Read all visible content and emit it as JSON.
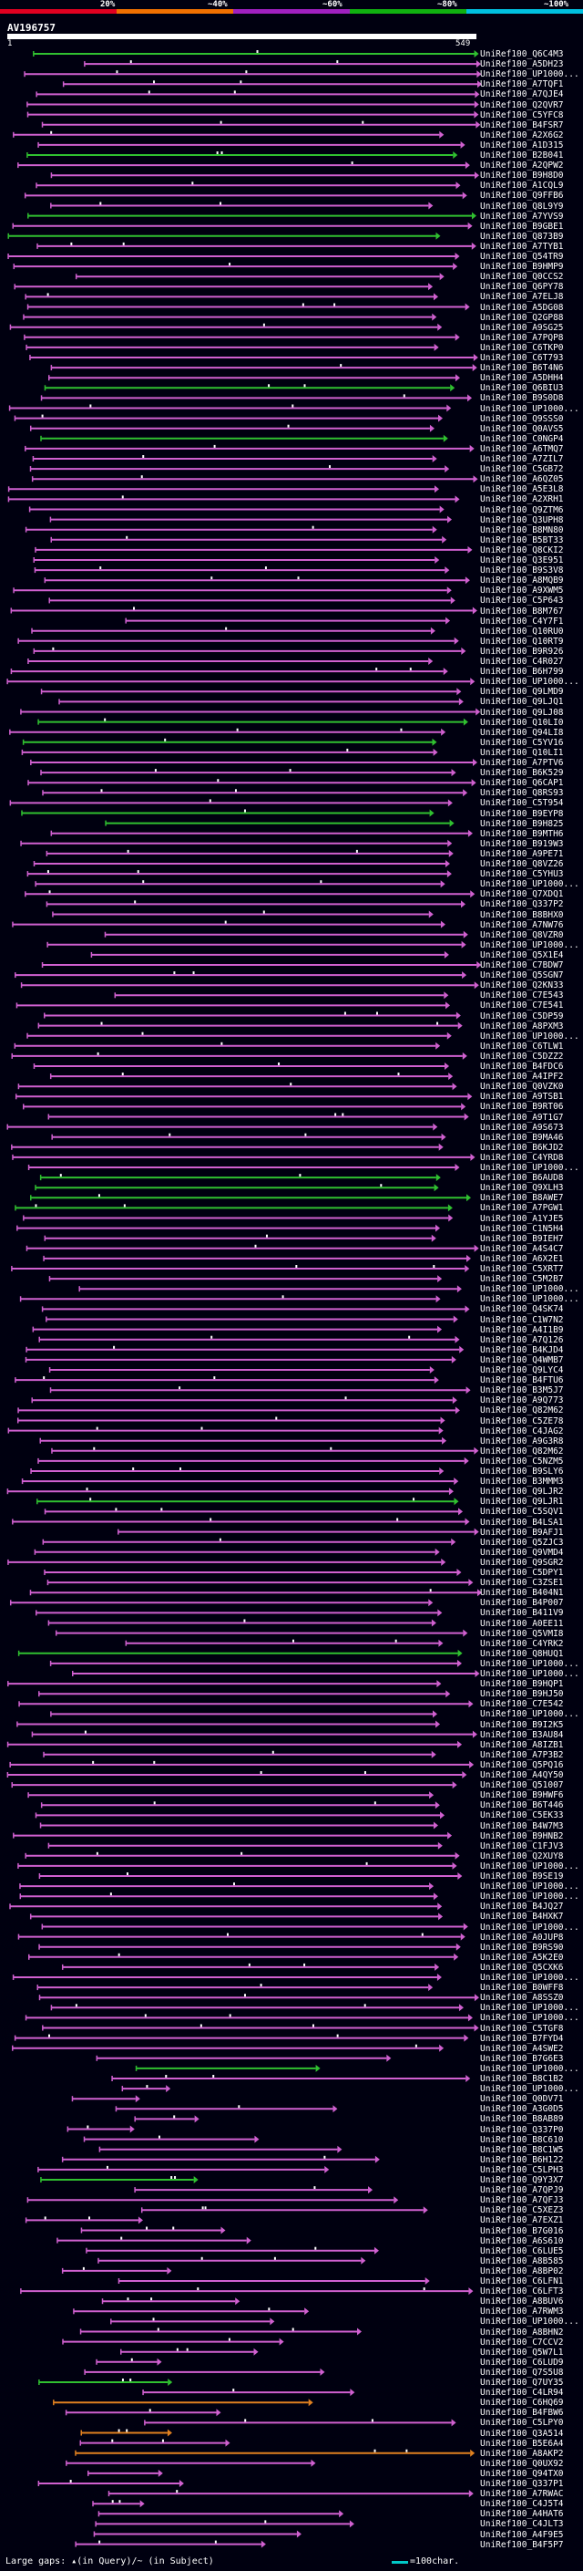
{
  "colors": {
    "background": "#000010",
    "pct20": "#e00020",
    "pct40": "#f07000",
    "pct60": "#a020c0",
    "pct80": "#10b010",
    "pct100": "#00c0e0",
    "query": "#ffffff",
    "gap_marker": "#ffffff"
  },
  "legend": {
    "labels": [
      "20%",
      "~40%",
      "~60%",
      "~80%",
      "~100%"
    ]
  },
  "query": {
    "name": "AV196757",
    "start": "1",
    "end": "549"
  },
  "hits": [
    {
      "label": "UniRef100_Q6C4M3",
      "color": "green"
    },
    {
      "label": "UniRef100_A5DH23",
      "color": "pink"
    },
    {
      "label": "UniRef100_UP1000...",
      "color": "pink"
    },
    {
      "label": "UniRef100_A7TQF1",
      "color": "pink"
    },
    {
      "label": "UniRef100_A7QJE4",
      "color": "pink"
    },
    {
      "label": "UniRef100_Q2QVR7",
      "color": "pink"
    },
    {
      "label": "UniRef100_C5YFC8",
      "color": "pink"
    },
    {
      "label": "UniRef100_B4FSR7",
      "color": "pink"
    },
    {
      "label": "UniRef100_A2X6G2",
      "color": "pink"
    },
    {
      "label": "UniRef100_A1D315",
      "color": "pink"
    },
    {
      "label": "UniRef100_B2B041",
      "color": "green"
    },
    {
      "label": "UniRef100_A2QPW2",
      "color": "pink"
    },
    {
      "label": "UniRef100_B9H8D0",
      "color": "pink"
    },
    {
      "label": "UniRef100_A1CQL9",
      "color": "pink"
    },
    {
      "label": "UniRef100_Q9FFB6",
      "color": "pink"
    },
    {
      "label": "UniRef100_Q8L9Y9",
      "color": "pink"
    },
    {
      "label": "UniRef100_A7YVS9",
      "color": "green"
    },
    {
      "label": "UniRef100_B9GBE1",
      "color": "pink"
    },
    {
      "label": "UniRef100_Q873B9",
      "color": "green"
    },
    {
      "label": "UniRef100_A7TYB1",
      "color": "pink"
    },
    {
      "label": "UniRef100_Q54TR9",
      "color": "pink"
    },
    {
      "label": "UniRef100_B9HMP9",
      "color": "pink"
    },
    {
      "label": "UniRef100_Q0CCS2",
      "color": "pink"
    },
    {
      "label": "UniRef100_Q6PY78",
      "color": "pink"
    },
    {
      "label": "UniRef100_A7ELJ8",
      "color": "pink"
    },
    {
      "label": "UniRef100_A5DG08",
      "color": "pink"
    },
    {
      "label": "UniRef100_Q2GP88",
      "color": "pink"
    },
    {
      "label": "UniRef100_A9SG25",
      "color": "pink"
    },
    {
      "label": "UniRef100_A7PQP8",
      "color": "pink"
    },
    {
      "label": "UniRef100_C6TKP0",
      "color": "pink"
    },
    {
      "label": "UniRef100_C6T793",
      "color": "pink"
    },
    {
      "label": "UniRef100_B6T4N6",
      "color": "pink"
    },
    {
      "label": "UniRef100_A5DHH4",
      "color": "pink"
    },
    {
      "label": "UniRef100_Q6BIU3",
      "color": "green"
    },
    {
      "label": "UniRef100_B9S0D8",
      "color": "pink"
    },
    {
      "label": "UniRef100_UP1000...",
      "color": "pink"
    },
    {
      "label": "UniRef100_Q9SSS0",
      "color": "pink"
    },
    {
      "label": "UniRef100_Q0AVS5",
      "color": "pink"
    },
    {
      "label": "UniRef100_C0NGP4",
      "color": "green"
    },
    {
      "label": "UniRef100_A6TMQ7",
      "color": "pink"
    },
    {
      "label": "UniRef100_A7ZIL7",
      "color": "pink"
    },
    {
      "label": "UniRef100_C5GB72",
      "color": "pink"
    },
    {
      "label": "UniRef100_A6QZ05",
      "color": "pink"
    },
    {
      "label": "UniRef100_A5E3L8",
      "color": "pink"
    },
    {
      "label": "UniRef100_A2XRH1",
      "color": "pink"
    },
    {
      "label": "UniRef100_Q9ZTM6",
      "color": "pink"
    },
    {
      "label": "UniRef100_Q3UPH8",
      "color": "pink"
    },
    {
      "label": "UniRef100_B8MN80",
      "color": "pink"
    },
    {
      "label": "UniRef100_B5BT33",
      "color": "pink"
    },
    {
      "label": "UniRef100_Q8CKI2",
      "color": "pink"
    },
    {
      "label": "UniRef100_Q3E951",
      "color": "pink"
    },
    {
      "label": "UniRef100_B9S3V8",
      "color": "pink"
    },
    {
      "label": "UniRef100_A8MQB9",
      "color": "pink"
    },
    {
      "label": "UniRef100_A9XWM5",
      "color": "pink"
    },
    {
      "label": "UniRef100_C5P643",
      "color": "pink"
    },
    {
      "label": "UniRef100_B8M767",
      "color": "pink"
    },
    {
      "label": "UniRef100_C4Y7F1",
      "color": "pink"
    },
    {
      "label": "UniRef100_Q10RU0",
      "color": "pink"
    },
    {
      "label": "UniRef100_Q10RT9",
      "color": "pink"
    },
    {
      "label": "UniRef100_B9R926",
      "color": "pink"
    },
    {
      "label": "UniRef100_C4R027",
      "color": "pink"
    },
    {
      "label": "UniRef100_B6H799",
      "color": "pink"
    },
    {
      "label": "UniRef100_UP1000...",
      "color": "pink"
    },
    {
      "label": "UniRef100_Q9LMD9",
      "color": "pink"
    },
    {
      "label": "UniRef100_Q9LJQ1",
      "color": "pink"
    },
    {
      "label": "UniRef100_Q9LJ08",
      "color": "pink"
    },
    {
      "label": "UniRef100_Q10LI0",
      "color": "green"
    },
    {
      "label": "UniRef100_Q94LI8",
      "color": "pink"
    },
    {
      "label": "UniRef100_C5YV16",
      "color": "green"
    },
    {
      "label": "UniRef100_Q10LI1",
      "color": "pink"
    },
    {
      "label": "UniRef100_A7PTV6",
      "color": "pink"
    },
    {
      "label": "UniRef100_B6K529",
      "color": "pink"
    },
    {
      "label": "UniRef100_Q6CAP1",
      "color": "pink"
    },
    {
      "label": "UniRef100_Q8RS93",
      "color": "pink"
    },
    {
      "label": "UniRef100_C5T954",
      "color": "pink"
    },
    {
      "label": "UniRef100_B9EYP8",
      "color": "green"
    },
    {
      "label": "UniRef100_B9H825",
      "color": "green"
    },
    {
      "label": "UniRef100_B9MTH6",
      "color": "pink"
    },
    {
      "label": "UniRef100_B919W3",
      "color": "pink"
    },
    {
      "label": "UniRef100_A9PE71",
      "color": "pink"
    },
    {
      "label": "UniRef100_Q8VZ26",
      "color": "pink"
    },
    {
      "label": "UniRef100_C5YHU3",
      "color": "pink"
    },
    {
      "label": "UniRef100_UP1000...",
      "color": "pink"
    },
    {
      "label": "UniRef100_Q7XDQ1",
      "color": "pink"
    },
    {
      "label": "UniRef100_Q337P2",
      "color": "pink"
    },
    {
      "label": "UniRef100_B8BHX0",
      "color": "pink"
    },
    {
      "label": "UniRef100_A7NW76",
      "color": "pink"
    },
    {
      "label": "UniRef100_Q8VZR0",
      "color": "pink"
    },
    {
      "label": "UniRef100_UP1000...",
      "color": "pink"
    },
    {
      "label": "UniRef100_Q5X1E4",
      "color": "pink"
    },
    {
      "label": "UniRef100_C7BDW7",
      "color": "pink"
    },
    {
      "label": "UniRef100_Q5SGN7",
      "color": "pink"
    },
    {
      "label": "UniRef100_Q2KN33",
      "color": "pink"
    },
    {
      "label": "UniRef100_C7E543",
      "color": "pink"
    },
    {
      "label": "UniRef100_C7E541",
      "color": "pink"
    },
    {
      "label": "UniRef100_C5DP59",
      "color": "pink"
    },
    {
      "label": "UniRef100_A8PXM3",
      "color": "pink"
    },
    {
      "label": "UniRef100_UP1000...",
      "color": "pink"
    },
    {
      "label": "UniRef100_C6TLW1",
      "color": "pink"
    },
    {
      "label": "UniRef100_C5DZZ2",
      "color": "pink"
    },
    {
      "label": "UniRef100_B4FDC6",
      "color": "pink"
    },
    {
      "label": "UniRef100_A4IPF2",
      "color": "pink"
    },
    {
      "label": "UniRef100_Q0VZK0",
      "color": "pink"
    },
    {
      "label": "UniRef100_A9TSB1",
      "color": "pink"
    },
    {
      "label": "UniRef100_B9RT06",
      "color": "pink"
    },
    {
      "label": "UniRef100_A9T1G7",
      "color": "pink"
    },
    {
      "label": "UniRef100_A9S673",
      "color": "pink"
    },
    {
      "label": "UniRef100_B9MA46",
      "color": "pink"
    },
    {
      "label": "UniRef100_B6KJD2",
      "color": "pink"
    },
    {
      "label": "UniRef100_C4YRD8",
      "color": "pink"
    },
    {
      "label": "UniRef100_UP1000...",
      "color": "pink"
    },
    {
      "label": "UniRef100_B6AUD8",
      "color": "green"
    },
    {
      "label": "UniRef100_Q9XLH3",
      "color": "green"
    },
    {
      "label": "UniRef100_B8AWE7",
      "color": "green"
    },
    {
      "label": "UniRef100_A7PGW1",
      "color": "green"
    },
    {
      "label": "UniRef100_A1YJE5",
      "color": "pink"
    },
    {
      "label": "UniRef100_C1N5H4",
      "color": "pink"
    },
    {
      "label": "UniRef100_B9IEH7",
      "color": "pink"
    },
    {
      "label": "UniRef100_A4S4C7",
      "color": "pink"
    },
    {
      "label": "UniRef100_A6X2E1",
      "color": "pink"
    },
    {
      "label": "UniRef100_C5XRT7",
      "color": "pink"
    },
    {
      "label": "UniRef100_C5M2B7",
      "color": "pink"
    },
    {
      "label": "UniRef100_UP1000...",
      "color": "pink"
    },
    {
      "label": "UniRef100_UP1000...",
      "color": "pink"
    },
    {
      "label": "UniRef100_Q4SK74",
      "color": "pink"
    },
    {
      "label": "UniRef100_C1W7N2",
      "color": "pink"
    },
    {
      "label": "UniRef100_A4I1B9",
      "color": "pink"
    },
    {
      "label": "UniRef100_A7Q126",
      "color": "pink"
    },
    {
      "label": "UniRef100_B4KJD4",
      "color": "pink"
    },
    {
      "label": "UniRef100_Q4WMB7",
      "color": "pink"
    },
    {
      "label": "UniRef100_Q9LYC4",
      "color": "pink"
    },
    {
      "label": "UniRef100_B4FTU6",
      "color": "pink"
    },
    {
      "label": "UniRef100_B3M5J7",
      "color": "pink"
    },
    {
      "label": "UniRef100_A9Q773",
      "color": "pink"
    },
    {
      "label": "UniRef100_Q82M62",
      "color": "pink"
    },
    {
      "label": "UniRef100_C5ZE78",
      "color": "pink"
    },
    {
      "label": "UniRef100_C4JAG2",
      "color": "pink"
    },
    {
      "label": "UniRef100_A9G3R8",
      "color": "pink"
    },
    {
      "label": "UniRef100_Q82M62",
      "color": "pink"
    },
    {
      "label": "UniRef100_C5NZM5",
      "color": "pink"
    },
    {
      "label": "UniRef100_B9SLY6",
      "color": "pink"
    },
    {
      "label": "UniRef100_B3MMM3",
      "color": "pink"
    },
    {
      "label": "UniRef100_Q9LJR2",
      "color": "pink"
    },
    {
      "label": "UniRef100_Q9LJR1",
      "color": "green"
    },
    {
      "label": "UniRef100_C5SQV1",
      "color": "pink"
    },
    {
      "label": "UniRef100_B4LSA1",
      "color": "pink"
    },
    {
      "label": "UniRef100_B9AFJ1",
      "color": "pink"
    },
    {
      "label": "UniRef100_Q5ZJC3",
      "color": "pink"
    },
    {
      "label": "UniRef100_Q9VMD4",
      "color": "pink"
    },
    {
      "label": "UniRef100_Q9SGR2",
      "color": "pink"
    },
    {
      "label": "UniRef100_C5DPY1",
      "color": "pink"
    },
    {
      "label": "UniRef100_C3ZSE1",
      "color": "pink"
    },
    {
      "label": "UniRef100_B404N1",
      "color": "pink"
    },
    {
      "label": "UniRef100_B4P007",
      "color": "pink"
    },
    {
      "label": "UniRef100_B411V9",
      "color": "pink"
    },
    {
      "label": "UniRef100_A0EE11",
      "color": "pink"
    },
    {
      "label": "UniRef100_Q5VMI8",
      "color": "pink"
    },
    {
      "label": "UniRef100_C4YRK2",
      "color": "pink"
    },
    {
      "label": "UniRef100_Q8HUQ1",
      "color": "green"
    },
    {
      "label": "UniRef100_UP1000...",
      "color": "pink"
    },
    {
      "label": "UniRef100_UP1000...",
      "color": "pink"
    },
    {
      "label": "UniRef100_B9HQP1",
      "color": "pink"
    },
    {
      "label": "UniRef100_B9HJ50",
      "color": "pink"
    },
    {
      "label": "UniRef100_C7E542",
      "color": "pink"
    },
    {
      "label": "UniRef100_UP1000...",
      "color": "pink"
    },
    {
      "label": "UniRef100_B9I2K5",
      "color": "pink"
    },
    {
      "label": "UniRef100_B3AU84",
      "color": "pink"
    },
    {
      "label": "UniRef100_A8IZB1",
      "color": "pink"
    },
    {
      "label": "UniRef100_A7P3B2",
      "color": "pink"
    },
    {
      "label": "UniRef100_Q5PQ16",
      "color": "pink"
    },
    {
      "label": "UniRef100_A4QY50",
      "color": "pink"
    },
    {
      "label": "UniRef100_Q51007",
      "color": "pink"
    },
    {
      "label": "UniRef100_B9HWF6",
      "color": "pink"
    },
    {
      "label": "UniRef100_B6T446",
      "color": "pink"
    },
    {
      "label": "UniRef100_C5EK33",
      "color": "pink"
    },
    {
      "label": "UniRef100_B4W7M3",
      "color": "pink"
    },
    {
      "label": "UniRef100_B9HNB2",
      "color": "pink"
    },
    {
      "label": "UniRef100_C1FJV3",
      "color": "pink"
    },
    {
      "label": "UniRef100_Q2XUY8",
      "color": "pink"
    },
    {
      "label": "UniRef100_UP1000...",
      "color": "pink"
    },
    {
      "label": "UniRef100_B9SE19",
      "color": "pink"
    },
    {
      "label": "UniRef100_UP1000...",
      "color": "pink"
    },
    {
      "label": "UniRef100_UP1000...",
      "color": "pink"
    },
    {
      "label": "UniRef100_B4JQ27",
      "color": "pink"
    },
    {
      "label": "UniRef100_B4HXK7",
      "color": "pink"
    },
    {
      "label": "UniRef100_UP1000...",
      "color": "pink"
    },
    {
      "label": "UniRef100_A0JUP8",
      "color": "pink"
    },
    {
      "label": "UniRef100_B9RS90",
      "color": "pink"
    },
    {
      "label": "UniRef100_A5K2E0",
      "color": "pink"
    },
    {
      "label": "UniRef100_Q5CXK6",
      "color": "pink"
    },
    {
      "label": "UniRef100_UP1000...",
      "color": "pink"
    },
    {
      "label": "UniRef100_B0WFF8",
      "color": "pink"
    },
    {
      "label": "UniRef100_A8SSZ0",
      "color": "pink"
    },
    {
      "label": "UniRef100_UP1000...",
      "color": "pink"
    },
    {
      "label": "UniRef100_UP1000...",
      "color": "pink"
    },
    {
      "label": "UniRef100_C5TGF8",
      "color": "pink"
    },
    {
      "label": "UniRef100_B7FYD4",
      "color": "pink"
    },
    {
      "label": "UniRef100_A4SWE2",
      "color": "pink"
    },
    {
      "label": "UniRef100_B7G6E3",
      "color": "pink"
    },
    {
      "label": "UniRef100_UP1000...",
      "color": "green"
    },
    {
      "label": "UniRef100_B8C1B2",
      "color": "pink"
    },
    {
      "label": "UniRef100_UP1000...",
      "color": "pink"
    },
    {
      "label": "UniRef100_Q0DV71",
      "color": "pink"
    },
    {
      "label": "UniRef100_A3G0D5",
      "color": "pink"
    },
    {
      "label": "UniRef100_B8AB89",
      "color": "pink"
    },
    {
      "label": "UniRef100_Q337P0",
      "color": "pink"
    },
    {
      "label": "UniRef100_B8C610",
      "color": "pink"
    },
    {
      "label": "UniRef100_B8C1W5",
      "color": "pink"
    },
    {
      "label": "UniRef100_B6H122",
      "color": "pink"
    },
    {
      "label": "UniRef100_C5LPH3",
      "color": "pink"
    },
    {
      "label": "UniRef100_Q9Y3X7",
      "color": "green"
    },
    {
      "label": "UniRef100_A7QPJ9",
      "color": "pink"
    },
    {
      "label": "UniRef100_A7QFJ3",
      "color": "pink"
    },
    {
      "label": "UniRef100_C5XEZ3",
      "color": "pink"
    },
    {
      "label": "UniRef100_A7EXZ1",
      "color": "pink"
    },
    {
      "label": "UniRef100_B7G016",
      "color": "pink"
    },
    {
      "label": "UniRef100_A6S610",
      "color": "pink"
    },
    {
      "label": "UniRef100_C6LUE5",
      "color": "pink"
    },
    {
      "label": "UniRef100_A8B585",
      "color": "pink"
    },
    {
      "label": "UniRef100_A8BP02",
      "color": "pink"
    },
    {
      "label": "UniRef100_C6LFN1",
      "color": "pink"
    },
    {
      "label": "UniRef100_C6LFT3",
      "color": "pink"
    },
    {
      "label": "UniRef100_A8BUV6",
      "color": "pink"
    },
    {
      "label": "UniRef100_A7RWM3",
      "color": "pink"
    },
    {
      "label": "UniRef100_UP1000...",
      "color": "pink"
    },
    {
      "label": "UniRef100_A8BHN2",
      "color": "pink"
    },
    {
      "label": "UniRef100_C7CCV2",
      "color": "pink"
    },
    {
      "label": "UniRef100_Q5W7L1",
      "color": "pink"
    },
    {
      "label": "UniRef100_C6LUD9",
      "color": "pink"
    },
    {
      "label": "UniRef100_Q7S5U8",
      "color": "pink"
    },
    {
      "label": "UniRef100_Q7UY35",
      "color": "green"
    },
    {
      "label": "UniRef100_C4LR94",
      "color": "pink"
    },
    {
      "label": "UniRef100_C6HQ69",
      "color": "orange"
    },
    {
      "label": "UniRef100_B4FBW6",
      "color": "pink"
    },
    {
      "label": "UniRef100_C5LPY0",
      "color": "pink"
    },
    {
      "label": "UniRef100_Q3A514",
      "color": "orange"
    },
    {
      "label": "UniRef100_B5E6A4",
      "color": "pink"
    },
    {
      "label": "UniRef100_A8AKP2",
      "color": "orange"
    },
    {
      "label": "UniRef100_Q0UX92",
      "color": "pink"
    },
    {
      "label": "UniRef100_Q94TX0",
      "color": "pink"
    },
    {
      "label": "UniRef100_Q337P1",
      "color": "pink"
    },
    {
      "label": "UniRef100_A7RWAC",
      "color": "pink"
    },
    {
      "label": "UniRef100_C4J5T4",
      "color": "pink"
    },
    {
      "label": "UniRef100_A4HAT6",
      "color": "pink"
    },
    {
      "label": "UniRef100_C4JLT3",
      "color": "pink"
    },
    {
      "label": "UniRef100_A4F9E5",
      "color": "pink"
    },
    {
      "label": "UniRef100_B4F5P7",
      "color": "pink"
    }
  ],
  "footer": {
    "text": "Large gaps: ▴(in Query)/~ (in Subject)",
    "scale": "=100char."
  }
}
